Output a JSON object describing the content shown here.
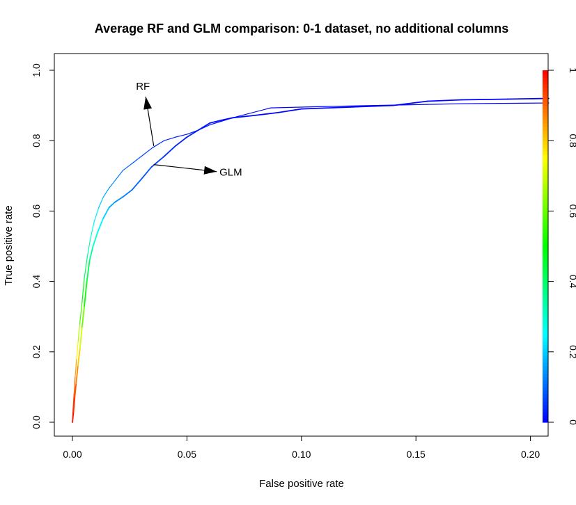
{
  "chart_data": {
    "type": "line",
    "title": "Average RF and GLM comparison: 0-1 dataset, no additional columns",
    "xlabel": "False positive rate",
    "ylabel": "True positive rate",
    "xlim": [
      0,
      0.208
    ],
    "ylim": [
      0,
      1
    ],
    "grid": false,
    "x_ticks": [
      "0.00",
      "0.05",
      "0.10",
      "0.15",
      "0.20"
    ],
    "y_ticks": [
      "0.0",
      "0.2",
      "0.4",
      "0.6",
      "0.8",
      "1.0"
    ],
    "colorbar": {
      "ticks": [
        "0",
        "0.2",
        "0.4",
        "0.6",
        "0.8",
        "1"
      ],
      "colormap": [
        "#0000ff",
        "#00ffff",
        "#00ff00",
        "#ffff00",
        "#ff0000"
      ]
    },
    "annotations": [
      {
        "text": "RF",
        "from": [
          0.0355,
          0.785
        ],
        "to": [
          0.032,
          0.925
        ]
      },
      {
        "text": "GLM",
        "from": [
          0.0355,
          0.732
        ],
        "to": [
          0.063,
          0.712
        ]
      }
    ],
    "series": [
      {
        "name": "RF",
        "points": [
          [
            0.0,
            0.0,
            0.99
          ],
          [
            0.0003,
            0.04,
            0.96
          ],
          [
            0.0007,
            0.08,
            0.93
          ],
          [
            0.0012,
            0.13,
            0.88
          ],
          [
            0.0018,
            0.18,
            0.8
          ],
          [
            0.0025,
            0.23,
            0.72
          ],
          [
            0.0032,
            0.28,
            0.62
          ],
          [
            0.0042,
            0.34,
            0.52
          ],
          [
            0.0052,
            0.41,
            0.44
          ],
          [
            0.0065,
            0.47,
            0.36
          ],
          [
            0.0078,
            0.52,
            0.3
          ],
          [
            0.0095,
            0.57,
            0.25
          ],
          [
            0.0115,
            0.61,
            0.21
          ],
          [
            0.0135,
            0.64,
            0.18
          ],
          [
            0.016,
            0.665,
            0.15
          ],
          [
            0.019,
            0.69,
            0.13
          ],
          [
            0.022,
            0.715,
            0.11
          ],
          [
            0.026,
            0.735,
            0.09
          ],
          [
            0.03,
            0.755,
            0.07
          ],
          [
            0.035,
            0.78,
            0.05
          ],
          [
            0.04,
            0.8,
            0.04
          ],
          [
            0.045,
            0.81,
            0.03
          ],
          [
            0.05,
            0.818,
            0.025
          ],
          [
            0.055,
            0.83,
            0.02
          ],
          [
            0.06,
            0.845,
            0.015
          ],
          [
            0.065,
            0.855,
            0.01
          ],
          [
            0.07,
            0.865,
            0.008
          ],
          [
            0.0865,
            0.893,
            0.005
          ],
          [
            0.11,
            0.897,
            0.003
          ],
          [
            0.14,
            0.901,
            0.002
          ],
          [
            0.17,
            0.905,
            0.001
          ],
          [
            0.208,
            0.907,
            0.0
          ]
        ]
      },
      {
        "name": "GLM",
        "points": [
          [
            0.0,
            0.0,
            0.99
          ],
          [
            0.0005,
            0.03,
            0.97
          ],
          [
            0.001,
            0.07,
            0.94
          ],
          [
            0.0016,
            0.11,
            0.9
          ],
          [
            0.0024,
            0.16,
            0.84
          ],
          [
            0.0033,
            0.21,
            0.76
          ],
          [
            0.0042,
            0.27,
            0.66
          ],
          [
            0.0052,
            0.33,
            0.56
          ],
          [
            0.0063,
            0.4,
            0.46
          ],
          [
            0.0075,
            0.46,
            0.38
          ],
          [
            0.009,
            0.5,
            0.32
          ],
          [
            0.011,
            0.54,
            0.27
          ],
          [
            0.0135,
            0.58,
            0.22
          ],
          [
            0.016,
            0.61,
            0.18
          ],
          [
            0.0185,
            0.625,
            0.15
          ],
          [
            0.022,
            0.64,
            0.13
          ],
          [
            0.026,
            0.66,
            0.11
          ],
          [
            0.03,
            0.69,
            0.09
          ],
          [
            0.0345,
            0.725,
            0.07
          ],
          [
            0.04,
            0.755,
            0.05
          ],
          [
            0.045,
            0.785,
            0.04
          ],
          [
            0.05,
            0.81,
            0.03
          ],
          [
            0.055,
            0.83,
            0.025
          ],
          [
            0.06,
            0.85,
            0.02
          ],
          [
            0.065,
            0.858,
            0.015
          ],
          [
            0.07,
            0.865,
            0.012
          ],
          [
            0.08,
            0.872,
            0.01
          ],
          [
            0.09,
            0.88,
            0.008
          ],
          [
            0.1,
            0.89,
            0.006
          ],
          [
            0.12,
            0.895,
            0.004
          ],
          [
            0.14,
            0.9,
            0.003
          ],
          [
            0.155,
            0.912,
            0.002
          ],
          [
            0.17,
            0.916,
            0.001
          ],
          [
            0.19,
            0.918,
            0.001
          ],
          [
            0.208,
            0.92,
            0.0
          ]
        ]
      }
    ]
  }
}
